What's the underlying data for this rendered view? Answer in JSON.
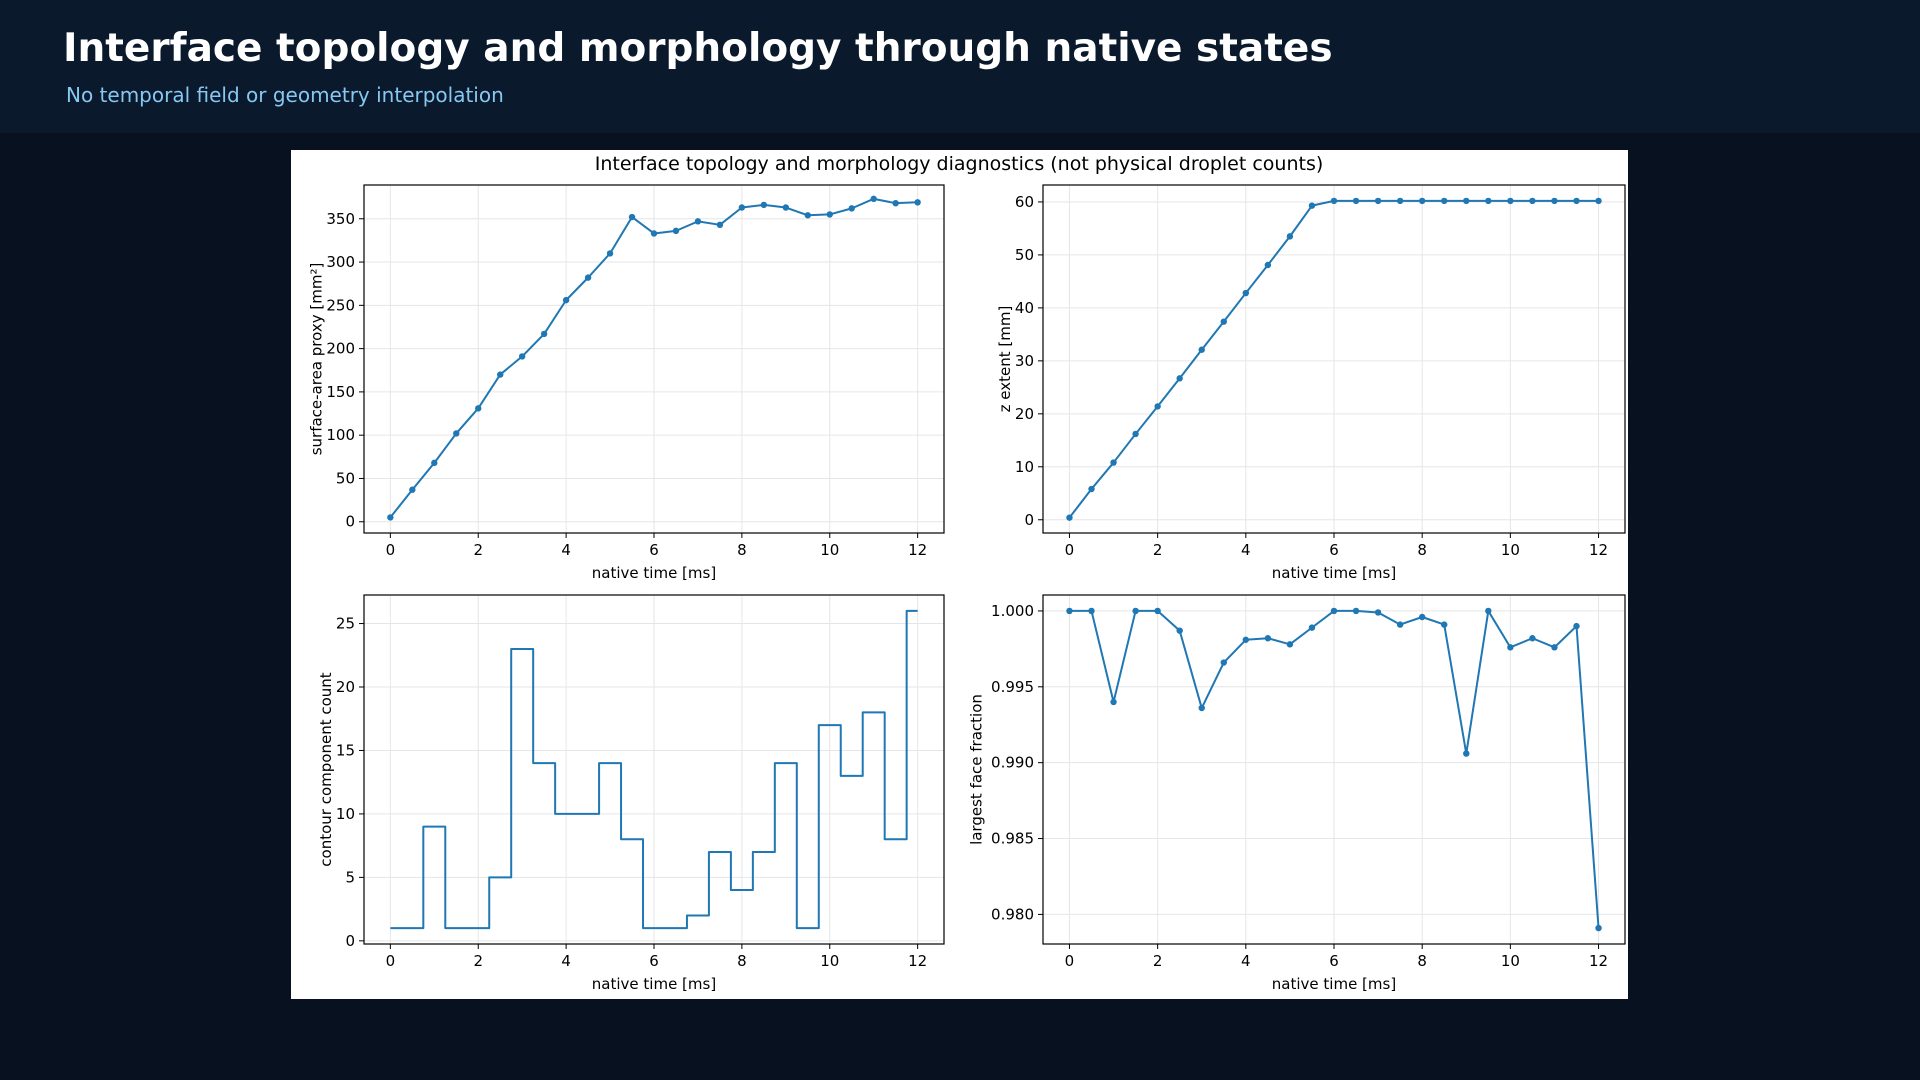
{
  "header": {
    "title": "Interface topology and morphology through native states",
    "subtitle": "No temporal field or geometry interpolation"
  },
  "figure": {
    "suptitle": "Interface topology and morphology diagnostics (not physical droplet counts)"
  },
  "colors": {
    "page_background": "#08111f",
    "header_background": "#0a1a2c",
    "subtitle": "#86c8f2",
    "series": "#1f77b4",
    "grid": "#e6e6e6"
  },
  "chart_data": [
    {
      "type": "line",
      "xlabel": "native time [ms]",
      "ylabel": "surface-area proxy [mm²]",
      "xlim": [
        -0.6,
        12.6
      ],
      "ylim": [
        -13,
        389
      ],
      "xticks": [
        0,
        2,
        4,
        6,
        8,
        10,
        12
      ],
      "xtick_labels": [
        "0",
        "2",
        "4",
        "6",
        "8",
        "10",
        "12"
      ],
      "yticks": [
        0,
        50,
        100,
        150,
        200,
        250,
        300,
        350
      ],
      "ytick_labels": [
        "0",
        "50",
        "100",
        "150",
        "200",
        "250",
        "300",
        "350"
      ],
      "grid": true,
      "markers": true,
      "x": [
        0,
        0.5,
        1,
        1.5,
        2,
        2.5,
        3,
        3.5,
        4,
        4.5,
        5,
        5.5,
        6,
        6.5,
        7,
        7.5,
        8,
        8.5,
        9,
        9.5,
        10,
        10.5,
        11,
        11.5,
        12
      ],
      "values": [
        5,
        37,
        68,
        102,
        131,
        170,
        191,
        217,
        256,
        282,
        310,
        352,
        333,
        336,
        347,
        343,
        363,
        366,
        363,
        354,
        355,
        362,
        373,
        368,
        369
      ]
    },
    {
      "type": "line",
      "xlabel": "native time [ms]",
      "ylabel": "z extent [mm]",
      "xlim": [
        -0.6,
        12.6
      ],
      "ylim": [
        -2.5,
        63.2
      ],
      "xticks": [
        0,
        2,
        4,
        6,
        8,
        10,
        12
      ],
      "xtick_labels": [
        "0",
        "2",
        "4",
        "6",
        "8",
        "10",
        "12"
      ],
      "yticks": [
        0,
        10,
        20,
        30,
        40,
        50,
        60
      ],
      "ytick_labels": [
        "0",
        "10",
        "20",
        "30",
        "40",
        "50",
        "60"
      ],
      "grid": true,
      "markers": true,
      "x": [
        0,
        0.5,
        1,
        1.5,
        2,
        2.5,
        3,
        3.5,
        4,
        4.5,
        5,
        5.5,
        6,
        6.5,
        7,
        7.5,
        8,
        8.5,
        9,
        9.5,
        10,
        10.5,
        11,
        11.5,
        12
      ],
      "values": [
        0.4,
        5.8,
        10.8,
        16.2,
        21.4,
        26.7,
        32.1,
        37.4,
        42.8,
        48.1,
        53.5,
        59.3,
        60.2,
        60.2,
        60.2,
        60.2,
        60.2,
        60.2,
        60.2,
        60.2,
        60.2,
        60.2,
        60.2,
        60.2,
        60.2
      ]
    },
    {
      "type": "line",
      "drawstyle": "steps-mid",
      "xlabel": "native time [ms]",
      "ylabel": "contour component count",
      "xlim": [
        -0.6,
        12.6
      ],
      "ylim": [
        -0.25,
        27.25
      ],
      "xticks": [
        0,
        2,
        4,
        6,
        8,
        10,
        12
      ],
      "xtick_labels": [
        "0",
        "2",
        "4",
        "6",
        "8",
        "10",
        "12"
      ],
      "yticks": [
        0,
        5,
        10,
        15,
        20,
        25
      ],
      "ytick_labels": [
        "0",
        "5",
        "10",
        "15",
        "20",
        "25"
      ],
      "grid": true,
      "markers": false,
      "x": [
        0,
        0.5,
        1,
        1.5,
        2,
        2.5,
        3,
        3.5,
        4,
        4.5,
        5,
        5.5,
        6,
        6.5,
        7,
        7.5,
        8,
        8.5,
        9,
        9.5,
        10,
        10.5,
        11,
        11.5,
        12
      ],
      "values": [
        1,
        1,
        9,
        1,
        1,
        5,
        23,
        14,
        10,
        10,
        14,
        8,
        1,
        1,
        2,
        7,
        4,
        7,
        14,
        1,
        17,
        13,
        18,
        8,
        26
      ]
    },
    {
      "type": "line",
      "xlabel": "native time [ms]",
      "ylabel": "largest face fraction",
      "xlim": [
        -0.6,
        12.6
      ],
      "ylim": [
        0.97805,
        1.00105
      ],
      "xticks": [
        0,
        2,
        4,
        6,
        8,
        10,
        12
      ],
      "xtick_labels": [
        "0",
        "2",
        "4",
        "6",
        "8",
        "10",
        "12"
      ],
      "yticks": [
        0.98,
        0.985,
        0.99,
        0.995,
        1.0
      ],
      "ytick_labels": [
        "0.980",
        "0.985",
        "0.990",
        "0.995",
        "1.000"
      ],
      "grid": true,
      "markers": true,
      "x": [
        0,
        0.5,
        1,
        1.5,
        2,
        2.5,
        3,
        3.5,
        4,
        4.5,
        5,
        5.5,
        6,
        6.5,
        7,
        7.5,
        8,
        8.5,
        9,
        9.5,
        10,
        10.5,
        11,
        11.5,
        12
      ],
      "values": [
        1.0,
        1.0,
        0.994,
        1.0,
        1.0,
        0.9987,
        0.9936,
        0.9966,
        0.9981,
        0.9982,
        0.9978,
        0.9989,
        1.0,
        1.0,
        0.9999,
        0.9991,
        0.9996,
        0.9991,
        0.9906,
        1.0,
        0.9976,
        0.9982,
        0.9976,
        0.999,
        0.9791
      ]
    }
  ]
}
